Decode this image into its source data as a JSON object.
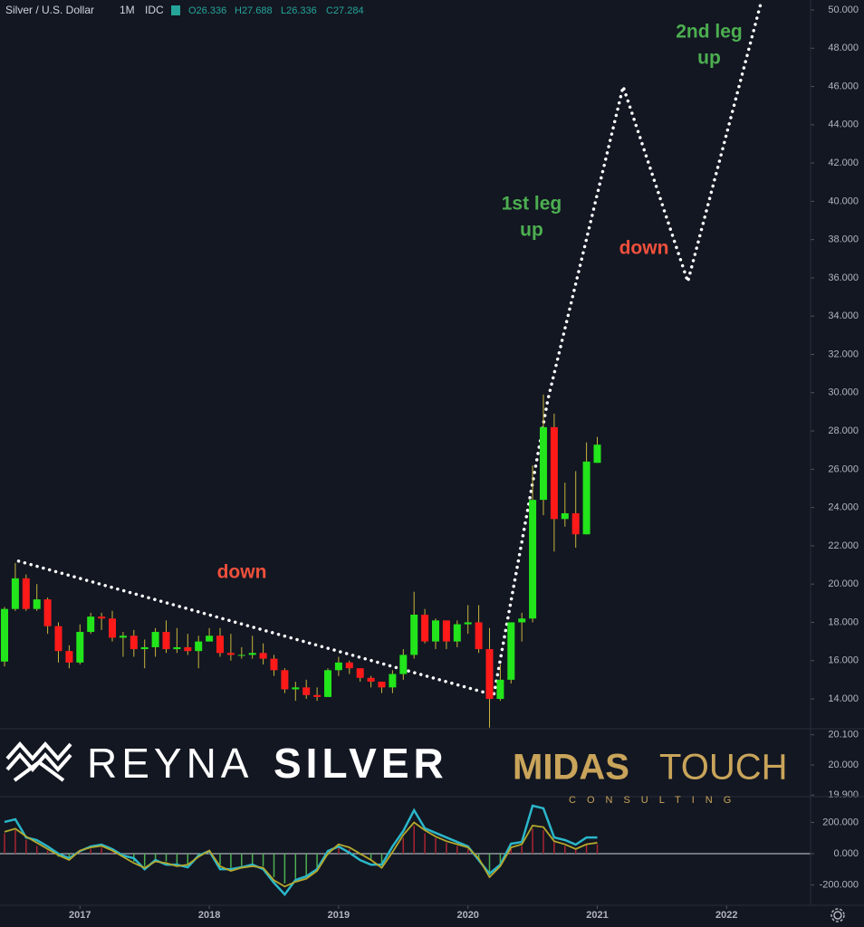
{
  "header": {
    "symbol": "Silver / U.S. Dollar",
    "interval": "1M",
    "source": "IDC",
    "ohlc": [
      "O26.336",
      "H27.688",
      "L26.336",
      "C27.284"
    ]
  },
  "logos": {
    "left": [
      "REYNA",
      "SILVER"
    ],
    "right": [
      "MIDAS",
      "TOUCH"
    ],
    "right_sub": "CONSULTING"
  },
  "chart_data": [
    {
      "type": "candlestick",
      "categories": [
        null,
        null,
        null,
        null,
        null,
        null,
        null,
        "2017",
        null,
        null,
        null,
        null,
        null,
        null,
        null,
        null,
        null,
        null,
        null,
        "2018",
        null,
        null,
        null,
        null,
        null,
        null,
        null,
        null,
        null,
        null,
        null,
        "2019",
        null,
        null,
        null,
        null,
        null,
        null,
        null,
        null,
        null,
        null,
        null,
        "2020",
        null,
        null,
        null,
        null,
        null,
        null,
        null,
        null,
        null,
        null,
        null,
        "2021",
        null,
        null,
        null,
        null,
        null,
        null,
        null,
        null,
        null,
        null,
        null,
        "2022",
        null,
        null,
        null,
        null,
        null,
        null,
        null
      ],
      "open": [
        15.95,
        18.7,
        20.3,
        18.7,
        19.2,
        17.8,
        16.5,
        15.9,
        17.5,
        18.3,
        18.2,
        17.2,
        17.3,
        16.6,
        16.7,
        17.5,
        16.6,
        16.7,
        16.5,
        17.0,
        17.3,
        16.4,
        16.3,
        16.3,
        16.4,
        16.1,
        15.5,
        14.5,
        14.6,
        14.2,
        14.1,
        15.5,
        15.9,
        15.6,
        15.1,
        14.9,
        14.6,
        15.3,
        16.3,
        18.4,
        17.0,
        18.1,
        17.0,
        17.9,
        18.0,
        16.6,
        14.0,
        15.0,
        18.0,
        18.2,
        24.4,
        28.2,
        23.4,
        23.7,
        22.6,
        26.336,
        null,
        null,
        null,
        null,
        null,
        null,
        null,
        null,
        null,
        null,
        null,
        null,
        null,
        null,
        null,
        null,
        null,
        null,
        null
      ],
      "high": [
        18.8,
        21.1,
        20.5,
        20.0,
        19.3,
        18.0,
        16.8,
        17.9,
        18.5,
        18.5,
        18.6,
        17.5,
        17.6,
        17.1,
        17.7,
        18.1,
        17.7,
        17.4,
        17.3,
        17.7,
        17.7,
        17.4,
        16.7,
        17.3,
        16.9,
        16.3,
        15.6,
        14.9,
        15.0,
        14.6,
        15.6,
        16.2,
        16.0,
        15.6,
        15.2,
        14.9,
        15.5,
        16.6,
        19.6,
        18.7,
        18.2,
        18.1,
        18.1,
        18.9,
        18.9,
        17.7,
        15.8,
        18.0,
        18.5,
        26.2,
        29.9,
        28.9,
        25.3,
        25.9,
        27.4,
        27.688,
        null,
        null,
        null,
        null,
        null,
        null,
        null,
        null,
        null,
        null,
        null,
        null,
        null,
        null,
        null,
        null,
        null,
        null,
        null
      ],
      "low": [
        15.7,
        18.6,
        18.6,
        18.6,
        17.4,
        15.9,
        15.6,
        15.8,
        17.4,
        17.6,
        17.0,
        16.2,
        16.2,
        15.6,
        16.2,
        16.4,
        16.4,
        16.3,
        15.6,
        17.0,
        16.2,
        16.0,
        16.1,
        16.1,
        15.8,
        15.2,
        14.3,
        13.9,
        14.0,
        13.9,
        14.1,
        15.2,
        15.3,
        14.9,
        14.6,
        14.3,
        14.3,
        15.0,
        16.1,
        16.9,
        16.6,
        16.6,
        16.7,
        17.4,
        16.4,
        12.5,
        13.9,
        14.8,
        17.0,
        18.0,
        23.6,
        21.7,
        23.0,
        21.9,
        22.6,
        26.336,
        null,
        null,
        null,
        null,
        null,
        null,
        null,
        null,
        null,
        null,
        null,
        null,
        null,
        null,
        null,
        null,
        null,
        null,
        null
      ],
      "close": [
        18.7,
        20.3,
        18.7,
        19.2,
        17.8,
        16.5,
        15.9,
        17.5,
        18.3,
        18.2,
        17.2,
        17.3,
        16.6,
        16.7,
        17.5,
        16.6,
        16.7,
        16.5,
        17.0,
        17.3,
        16.4,
        16.3,
        16.3,
        16.4,
        16.1,
        15.5,
        14.5,
        14.6,
        14.2,
        14.1,
        15.5,
        15.9,
        15.6,
        15.1,
        14.9,
        14.6,
        15.3,
        16.3,
        18.4,
        17.0,
        18.1,
        17.0,
        17.9,
        18.0,
        16.6,
        14.0,
        15.0,
        18.0,
        18.2,
        24.4,
        28.2,
        23.4,
        23.7,
        22.6,
        26.4,
        27.284,
        null,
        null,
        null,
        null,
        null,
        null,
        null,
        null,
        null,
        null,
        null,
        null,
        null,
        null,
        null,
        null,
        null,
        null,
        null
      ],
      "up_color": "#22e51b",
      "down_color": "#ff1a1a",
      "wick_color": "#c8b43c",
      "ylim": [
        12.44,
        50.52
      ],
      "yticks": [
        {
          "value": 14,
          "label": "14.000"
        },
        {
          "value": 16,
          "label": "16.000"
        },
        {
          "value": 18,
          "label": "18.000"
        },
        {
          "value": 20,
          "label": "20.000"
        },
        {
          "value": 22,
          "label": "22.000"
        },
        {
          "value": 24,
          "label": "24.000"
        },
        {
          "value": 26,
          "label": "26.000"
        },
        {
          "value": 28,
          "label": "28.000"
        },
        {
          "value": 30,
          "label": "30.000"
        },
        {
          "value": 32,
          "label": "32.000"
        },
        {
          "value": 34,
          "label": "34.000"
        },
        {
          "value": 36,
          "label": "36.000"
        },
        {
          "value": 38,
          "label": "38.000"
        },
        {
          "value": 40,
          "label": "40.000"
        },
        {
          "value": 42,
          "label": "42.000"
        },
        {
          "value": 44,
          "label": "44.000"
        },
        {
          "value": 46,
          "label": "46.000"
        },
        {
          "value": 48,
          "label": "48.000"
        },
        {
          "value": 50,
          "label": "50.000"
        }
      ],
      "trend_line": {
        "color": "#ffffff",
        "x": [
          1.3,
          45.4,
          50.4,
          57.4,
          63.4,
          70.2
        ],
        "y": [
          21.2,
          14.2,
          29.6,
          46.0,
          35.8,
          50.4
        ]
      },
      "annotations": [
        {
          "text": [
            "down"
          ],
          "color": "#f0503c"
        },
        {
          "text": [
            "1st leg",
            "up"
          ],
          "color": "#4caf50"
        },
        {
          "text": [
            "down"
          ],
          "color": "#f0503c"
        },
        {
          "text": [
            "2nd leg",
            "up"
          ],
          "color": "#4caf50"
        }
      ]
    },
    {
      "type": "blank",
      "ylim": [
        19.895,
        20.12
      ],
      "yticks": [
        {
          "value": 20.1,
          "label": "20.100"
        },
        {
          "value": 20.0,
          "label": "20.000"
        },
        {
          "value": 19.9,
          "label": "19.900"
        }
      ]
    },
    {
      "type": "oscillator",
      "ylim": [
        -330,
        365
      ],
      "yticks": [
        {
          "value": 200,
          "label": "200.000"
        },
        {
          "value": 0,
          "label": "0.000"
        },
        {
          "value": -200,
          "label": "-200.000"
        }
      ],
      "series": [
        {
          "color": "#2ab7ca",
          "values": [
            203,
            220,
            104,
            87,
            46,
            0,
            -29,
            17,
            46,
            58,
            29,
            -12,
            -29,
            -99,
            -41,
            -70,
            -70,
            -87,
            -12,
            17,
            -99,
            -99,
            -87,
            -70,
            -99,
            -186,
            -261,
            -168,
            -145,
            -99,
            17,
            46,
            6,
            -41,
            -70,
            -70,
            46,
            145,
            278,
            162,
            133,
            104,
            75,
            46,
            -41,
            -128,
            -70,
            64,
            75,
            307,
            290,
            104,
            87,
            58,
            104,
            104,
            null,
            null,
            null,
            null,
            null,
            null,
            null,
            null,
            null,
            null,
            null,
            null,
            null,
            null,
            null,
            null,
            null,
            null,
            null
          ]
        },
        {
          "color": "#b5a82c",
          "values": [
            140,
            160,
            110,
            70,
            30,
            -10,
            -40,
            20,
            40,
            50,
            20,
            -20,
            -60,
            -90,
            -50,
            -60,
            -80,
            -70,
            -20,
            20,
            -80,
            -110,
            -90,
            -80,
            -90,
            -170,
            -210,
            -180,
            -160,
            -110,
            0,
            60,
            40,
            0,
            -40,
            -90,
            10,
            120,
            200,
            150,
            110,
            80,
            60,
            40,
            -30,
            -150,
            -80,
            40,
            60,
            180,
            170,
            80,
            60,
            30,
            60,
            70,
            null,
            null,
            null,
            null,
            null,
            null,
            null,
            null,
            null,
            null,
            null,
            null,
            null,
            null,
            null,
            null,
            null,
            null,
            null
          ]
        }
      ],
      "bars": {
        "positive_color": "#a8252f",
        "negative_color": "#4caf50",
        "values": [
          130,
          150,
          90,
          50,
          20,
          -20,
          -40,
          10,
          30,
          40,
          10,
          -20,
          -50,
          -80,
          -40,
          -50,
          -70,
          -70,
          -20,
          10,
          -70,
          -90,
          -80,
          -70,
          -80,
          -150,
          -190,
          -160,
          -140,
          -100,
          -10,
          40,
          30,
          -10,
          -40,
          -70,
          0,
          100,
          180,
          130,
          100,
          70,
          50,
          30,
          -30,
          -120,
          -70,
          30,
          50,
          160,
          150,
          80,
          50,
          30,
          60,
          60,
          null,
          null,
          null,
          null,
          null,
          null,
          null,
          null,
          null,
          null,
          null,
          null,
          null,
          null,
          null,
          null,
          null,
          null,
          null
        ]
      }
    }
  ]
}
